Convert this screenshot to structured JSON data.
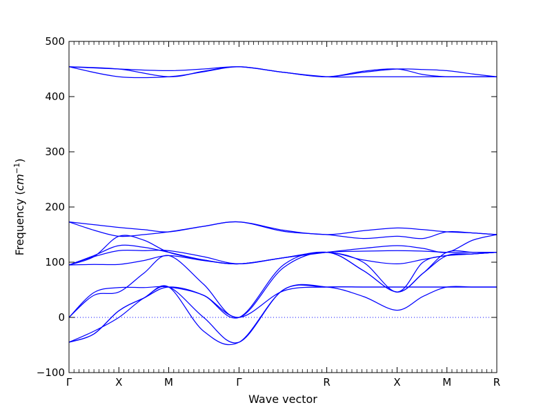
{
  "chart_data": {
    "type": "line",
    "title": "",
    "xlabel": "Wave vector",
    "ylabel": "Frequency",
    "ylabel_unit": "cm",
    "ylabel_unit_exp": "−1",
    "ylim": [
      -100,
      500
    ],
    "yticks": [
      -100,
      0,
      100,
      200,
      300,
      400,
      500
    ],
    "grid": false,
    "zero_line": "dotted",
    "line_color": "#0000ff",
    "segments": [
      {
        "from": "Γ",
        "to": "X",
        "x_start": 0,
        "x_end": 1
      },
      {
        "from": "X",
        "to": "M",
        "x_start": 1,
        "x_end": 2
      },
      {
        "from": "M",
        "to": "Γ",
        "x_start": 2,
        "x_end": 3.41
      },
      {
        "from": "Γ",
        "to": "R",
        "x_start": 3.41,
        "x_end": 5.17
      },
      {
        "from": "R",
        "to": "X",
        "x_start": 5.17,
        "x_end": 6.58
      },
      {
        "from": "X",
        "to": "M",
        "x_start": 6.58,
        "x_end": 7.58
      },
      {
        "from": "M",
        "to": "R",
        "x_start": 7.58,
        "x_end": 8.58
      }
    ],
    "high_symmetry_points": [
      {
        "label": "Γ",
        "x": 0
      },
      {
        "label": "X",
        "x": 1
      },
      {
        "label": "M",
        "x": 2
      },
      {
        "label": "Γ",
        "x": 3.41
      },
      {
        "label": "R",
        "x": 5.17
      },
      {
        "label": "X",
        "x": 6.58
      },
      {
        "label": "M",
        "x": 7.58
      },
      {
        "label": "R",
        "x": 8.58
      }
    ],
    "series": [
      {
        "x": [
          0,
          1,
          2,
          2.7,
          3.41,
          4.3,
          5.17,
          5.9,
          6.58,
          7.1,
          7.58,
          8.1,
          8.58
        ],
        "values": [
          454,
          436,
          436,
          445,
          454,
          444,
          436,
          436,
          436,
          436,
          436,
          436,
          436
        ]
      },
      {
        "x": [
          0,
          1,
          2,
          2.7,
          3.41,
          4.3,
          5.17,
          5.9,
          6.58,
          7.1,
          7.58,
          8.1,
          8.58
        ],
        "values": [
          454,
          450,
          436,
          446,
          454,
          444,
          436,
          446,
          450,
          440,
          436,
          436,
          436
        ]
      },
      {
        "x": [
          0,
          1,
          2,
          2.7,
          3.41,
          4.3,
          5.17,
          5.9,
          6.58,
          7.1,
          7.58,
          8.1,
          8.58
        ],
        "values": [
          454,
          450,
          447,
          450,
          454,
          444,
          436,
          444,
          450,
          449,
          447,
          441,
          436
        ]
      },
      {
        "x": [
          0,
          0.5,
          1,
          1.5,
          2,
          2.7,
          3.41,
          4.3,
          5.17,
          5.9,
          6.58,
          7.1,
          7.58,
          8.1,
          8.58
        ],
        "values": [
          173,
          168,
          163,
          159,
          155,
          165,
          173,
          158,
          150,
          157,
          162,
          159,
          155,
          153,
          150
        ]
      },
      {
        "x": [
          0,
          0.5,
          1,
          1.5,
          2,
          2.7,
          3.41,
          4.3,
          5.17,
          5.9,
          6.58,
          7.1,
          7.58,
          8.1,
          8.58
        ],
        "values": [
          173,
          158,
          147,
          150,
          155,
          165,
          173,
          156,
          150,
          143,
          147,
          143,
          155,
          153,
          150
        ]
      },
      {
        "x": [
          0,
          0.5,
          1,
          1.5,
          2,
          2.7,
          3.41,
          4.3,
          5.17,
          5.9,
          6.58,
          7.1,
          7.58,
          8.1,
          8.58
        ],
        "values": [
          95,
          112,
          130,
          127,
          118,
          104,
          97,
          108,
          118,
          125,
          130,
          125,
          118,
          140,
          150
        ]
      },
      {
        "x": [
          0,
          0.5,
          1,
          1.5,
          2,
          2.7,
          3.41,
          4.3,
          5.17,
          5.9,
          6.58,
          7.1,
          7.58,
          8.1,
          8.58
        ],
        "values": [
          95,
          96,
          96,
          103,
          112,
          103,
          97,
          108,
          118,
          104,
          97,
          105,
          112,
          115,
          118
        ]
      },
      {
        "x": [
          0,
          0.5,
          1,
          1.5,
          2,
          2.7,
          3.41,
          4.3,
          5.17,
          5.9,
          6.58,
          7.1,
          7.58,
          8.1,
          8.58
        ],
        "values": [
          95,
          110,
          121,
          121,
          121,
          110,
          97,
          108,
          118,
          120,
          121,
          120,
          118,
          118,
          118
        ]
      },
      {
        "x": [
          0,
          0.5,
          1,
          1.5,
          2,
          2.7,
          3.41,
          4.3,
          5.17,
          5.9,
          6.58,
          7.1,
          7.58,
          8.1,
          8.58
        ],
        "values": [
          95,
          110,
          147,
          140,
          118,
          104,
          97,
          108,
          118,
          100,
          46,
          100,
          112,
          115,
          118
        ]
      },
      {
        "x": [
          0,
          0.5,
          1,
          1.5,
          2,
          2.7,
          3.41,
          4.3,
          5.17,
          5.9,
          6.58,
          7.1,
          7.58,
          8.1,
          8.58
        ],
        "values": [
          0,
          40,
          46,
          80,
          112,
          60,
          0,
          90,
          118,
          85,
          46,
          80,
          112,
          115,
          118
        ]
      },
      {
        "x": [
          0,
          0.5,
          1,
          1.5,
          2,
          2.7,
          3.41,
          4.3,
          5.17,
          5.9,
          6.58,
          7.1,
          7.58,
          8.1,
          8.58
        ],
        "values": [
          0,
          45,
          54,
          54,
          55,
          40,
          0,
          95,
          118,
          85,
          46,
          80,
          118,
          118,
          118
        ]
      },
      {
        "x": [
          0,
          0.5,
          1,
          1.5,
          2,
          2.7,
          3.41,
          4.3,
          5.17,
          5.9,
          6.58,
          7.1,
          7.58,
          8.1,
          8.58
        ],
        "values": [
          -45,
          -30,
          12,
          35,
          55,
          40,
          0,
          48,
          55,
          55,
          55,
          55,
          55,
          55,
          55
        ]
      },
      {
        "x": [
          0,
          0.5,
          1,
          1.5,
          2,
          2.7,
          3.41,
          4.3,
          5.17,
          5.9,
          6.58,
          7.1,
          7.58,
          8.1,
          8.58
        ],
        "values": [
          -45,
          -25,
          0,
          35,
          55,
          0,
          -45,
          50,
          55,
          38,
          13,
          38,
          55,
          55,
          55
        ]
      },
      {
        "x": [
          0,
          0.5,
          1,
          1.5,
          2,
          2.7,
          3.41,
          4.3,
          5.17,
          5.9,
          6.58,
          7.1,
          7.58,
          8.1,
          8.58
        ],
        "values": [
          -45,
          -30,
          12,
          35,
          55,
          -25,
          -45,
          50,
          55,
          55,
          55,
          55,
          55,
          55,
          55
        ]
      }
    ]
  }
}
